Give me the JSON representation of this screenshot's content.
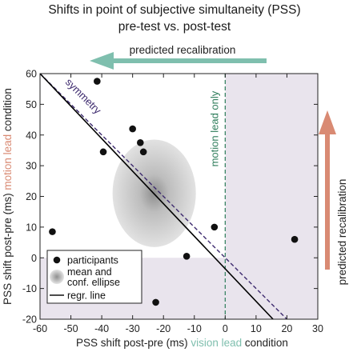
{
  "chart_data": {
    "type": "scatter",
    "title": "Shifts in point of subjective simultaneity (PSS)",
    "subtitle": "pre-test vs. post-test",
    "xlabel": {
      "prefix": "PSS shift post-pre (ms) ",
      "highlight": "vision lead",
      "suffix": " condition",
      "highlight_color": "#7fbfae"
    },
    "ylabel": {
      "prefix": "PSS shift post-pre (ms) ",
      "highlight": "motion lead",
      "suffix": " condition",
      "highlight_color": "#d98a73"
    },
    "xlim": [
      -60,
      30
    ],
    "ylim": [
      -20,
      60
    ],
    "xticks": [
      -60,
      -50,
      -40,
      -30,
      -20,
      -10,
      0,
      10,
      20,
      30
    ],
    "yticks": [
      -20,
      -10,
      0,
      10,
      20,
      30,
      40,
      50,
      60
    ],
    "grid": false,
    "points": [
      {
        "x": -41.5,
        "y": 57.5
      },
      {
        "x": -39.5,
        "y": 34.5
      },
      {
        "x": -30.0,
        "y": 42.0
      },
      {
        "x": -27.5,
        "y": 37.5
      },
      {
        "x": -26.5,
        "y": 34.5
      },
      {
        "x": -56.0,
        "y": 8.5
      },
      {
        "x": -12.5,
        "y": 0.5
      },
      {
        "x": -3.5,
        "y": 10.0
      },
      {
        "x": -22.5,
        "y": -14.5
      },
      {
        "x": 22.5,
        "y": 6.0
      }
    ],
    "mean_ellipse": {
      "center": [
        -23,
        21
      ],
      "radius_x": 13.5,
      "radius_y": 17.5
    },
    "regression_line": {
      "x1": -60,
      "y1": 60,
      "x2": 15.5,
      "y2": -20
    },
    "symmetry_line": {
      "x1": -60,
      "y1": 60,
      "x2": 20,
      "y2": -20,
      "label": "symmetry",
      "color": "#3d2a6e"
    },
    "reference_line": {
      "x": 0,
      "label": "motion lead only",
      "color": "#2e7d5b"
    },
    "shaded_regions": [
      {
        "x0": 0,
        "x1": 30,
        "y0": -20,
        "y1": 60,
        "color": "#e9e4ed"
      },
      {
        "x0": -60,
        "x1": 0,
        "y0": -20,
        "y1": 0,
        "color": "#e9e4ed"
      }
    ],
    "legend": {
      "position": "bottom-left",
      "items": [
        {
          "label": "participants",
          "marker": "dot"
        },
        {
          "label": "mean and",
          "label2": "conf. ellipse",
          "marker": "ellipse"
        },
        {
          "label": "regr. line",
          "marker": "line"
        }
      ]
    },
    "annotations": {
      "top_arrow": {
        "label": "predicted recalibration",
        "direction": "left",
        "color": "#7fbfae"
      },
      "right_arrow": {
        "label": "predicted recalibration",
        "direction": "up",
        "color": "#d98a73"
      }
    }
  }
}
